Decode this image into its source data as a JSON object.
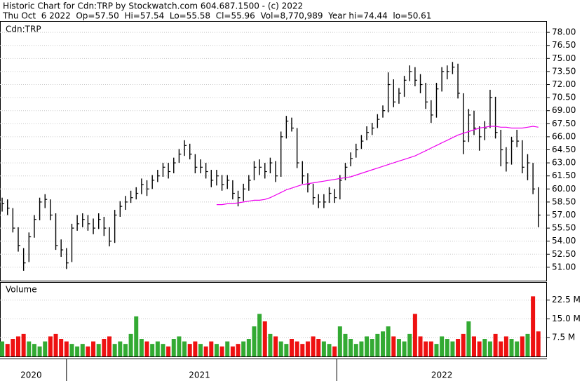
{
  "header": {
    "title": "Historic Chart for Cdn:TRP by Stockwatch.com 604.687.1500 - (c) 2022",
    "quote": "Thu Oct  6 2022  Op=57.50  Hi=57.54  Lo=55.58  Cl=55.96  Vol=8,770,989  Year hi=74.44  lo=50.61"
  },
  "chart_data": [
    {
      "type": "ohlc",
      "label": "Cdn:TRP",
      "color": "#000000",
      "grid": true,
      "xlim": [
        0,
        510
      ],
      "xticks": [
        62,
        314
      ],
      "x_labels": [
        {
          "value": 29,
          "label": "2020"
        },
        {
          "value": 186,
          "label": "2021"
        },
        {
          "value": 412,
          "label": "2022"
        }
      ],
      "x": [
        2,
        7,
        12,
        17,
        22,
        27,
        32,
        37,
        42,
        47,
        52,
        57,
        62,
        67,
        72,
        77,
        82,
        87,
        92,
        97,
        102,
        107,
        112,
        117,
        122,
        127,
        132,
        137,
        142,
        147,
        152,
        157,
        162,
        167,
        172,
        177,
        182,
        187,
        192,
        197,
        202,
        207,
        212,
        217,
        222,
        227,
        232,
        237,
        242,
        247,
        252,
        257,
        262,
        267,
        272,
        277,
        282,
        287,
        292,
        297,
        302,
        307,
        312,
        317,
        322,
        327,
        332,
        337,
        342,
        347,
        352,
        357,
        362,
        367,
        372,
        377,
        382,
        387,
        392,
        397,
        402,
        407,
        412,
        417,
        422,
        427,
        432,
        437,
        442,
        447,
        452,
        457,
        462,
        467,
        472,
        477,
        482,
        487,
        492,
        497,
        502
      ],
      "high": [
        59,
        58.8,
        57.8,
        55.6,
        53.2,
        55,
        57,
        59,
        59.4,
        58.8,
        57.2,
        54.2,
        53.2,
        56,
        57,
        57.2,
        57,
        56.6,
        57.2,
        56.8,
        55.6,
        57.6,
        58.6,
        59.2,
        59.8,
        60.2,
        61.2,
        61,
        61.6,
        62.2,
        63,
        63,
        63.6,
        64.6,
        65.6,
        65.2,
        64,
        63.4,
        63,
        62.2,
        62.2,
        61.6,
        61.6,
        61,
        59.8,
        60.6,
        61.6,
        63.2,
        63.4,
        63,
        63.6,
        63.2,
        66.6,
        68.4,
        68.2,
        67,
        63.2,
        61.8,
        60.6,
        59.4,
        59.4,
        60.2,
        60,
        61.6,
        63,
        64.2,
        65.2,
        66.2,
        67.2,
        67.6,
        68.6,
        69.6,
        73.4,
        72.6,
        71.6,
        73,
        74.2,
        74,
        73.2,
        72.2,
        70.2,
        72.2,
        74,
        74.2,
        74.6,
        74.4,
        71,
        69.2,
        69,
        67.2,
        67.8,
        71.4,
        70.6,
        66.8,
        64.8,
        66,
        66.8,
        65.6,
        64,
        63,
        60.2
      ],
      "low": [
        57.4,
        57,
        55,
        52.8,
        50.6,
        51.6,
        54.4,
        56.4,
        57.8,
        56.4,
        53,
        52.2,
        50.8,
        51.6,
        55.2,
        55.6,
        55.2,
        54.8,
        55.4,
        54.6,
        53.4,
        53.8,
        56.8,
        57.6,
        58.4,
        58.8,
        59.4,
        59.2,
        60,
        60.8,
        61.4,
        61.2,
        61.8,
        63,
        63.8,
        63.4,
        61.8,
        61.8,
        61.2,
        60.2,
        60.4,
        59.8,
        60,
        58.8,
        58,
        58.6,
        59.8,
        61,
        61.6,
        61.2,
        61.8,
        60.8,
        61.4,
        65.8,
        66.6,
        62.4,
        60.6,
        59.6,
        58.2,
        57.8,
        57.8,
        58.4,
        58.4,
        58.8,
        61,
        62.6,
        63.6,
        64.6,
        65.6,
        66.2,
        67,
        68.2,
        68.8,
        69.4,
        69.8,
        70.6,
        72.4,
        71.8,
        71,
        69.2,
        67.6,
        68.2,
        71.2,
        72.6,
        73.2,
        70.4,
        64,
        65.4,
        66.2,
        64.4,
        65.6,
        67,
        65.8,
        62.6,
        62,
        62.8,
        64.8,
        61.8,
        61,
        59.4,
        55.6
      ],
      "close": [
        58.3,
        57.8,
        55.5,
        53.5,
        51.5,
        54.5,
        56.5,
        58.5,
        58.8,
        57,
        53.5,
        53,
        51.5,
        55.5,
        56,
        56.5,
        56,
        55.5,
        56.5,
        55.5,
        54,
        57,
        58,
        58.5,
        59,
        59.5,
        60.5,
        60,
        61,
        61.5,
        62.5,
        62,
        63,
        64,
        65,
        64,
        62.5,
        62.5,
        62,
        61,
        61.5,
        60.5,
        61,
        59.5,
        59,
        60,
        61,
        62.5,
        62.5,
        62,
        63,
        61.5,
        66,
        67.8,
        67,
        63,
        61.5,
        60.5,
        59,
        58.5,
        58.5,
        59.5,
        59,
        61,
        62.5,
        63.5,
        64.5,
        65.5,
        66.5,
        67,
        68,
        69,
        72,
        70,
        71,
        72.5,
        73.5,
        72.5,
        72,
        70,
        68.5,
        71.5,
        73.5,
        73.5,
        74,
        71,
        65.5,
        68.5,
        67,
        66,
        67,
        70.5,
        66.5,
        64.5,
        63,
        65.5,
        65.5,
        62.5,
        63,
        60,
        57
      ],
      "moving_average": {
        "color": "#ee00ee",
        "values": [
          null,
          null,
          null,
          null,
          null,
          null,
          null,
          null,
          null,
          null,
          null,
          null,
          null,
          null,
          null,
          null,
          null,
          null,
          null,
          null,
          null,
          null,
          null,
          null,
          null,
          null,
          null,
          null,
          null,
          null,
          null,
          null,
          null,
          null,
          null,
          null,
          null,
          null,
          null,
          null,
          58.2,
          58.2,
          58.3,
          58.3,
          58.4,
          58.5,
          58.6,
          58.7,
          58.7,
          58.8,
          59.0,
          59.3,
          59.6,
          59.9,
          60.1,
          60.3,
          60.5,
          60.6,
          60.7,
          60.8,
          60.9,
          61.0,
          61.1,
          61.2,
          61.3,
          61.4,
          61.6,
          61.8,
          62.0,
          62.2,
          62.4,
          62.6,
          62.8,
          63.0,
          63.2,
          63.4,
          63.6,
          63.8,
          64.1,
          64.4,
          64.7,
          65.0,
          65.3,
          65.6,
          65.9,
          66.2,
          66.4,
          66.6,
          66.8,
          67.0,
          67.1,
          67.2,
          67.2,
          67.1,
          67.1,
          67.0,
          67.0,
          67.0,
          67.1,
          67.2,
          67.1
        ]
      },
      "ylim": [
        49.46,
        79.3
      ],
      "yticks": [
        {
          "value": 51,
          "label": "51.00"
        },
        {
          "value": 52.5,
          "label": "52.50"
        },
        {
          "value": 54,
          "label": "54.00"
        },
        {
          "value": 55.5,
          "label": "55.50"
        },
        {
          "value": 57,
          "label": "57.00"
        },
        {
          "value": 58.5,
          "label": "58.50"
        },
        {
          "value": 60,
          "label": "60.00"
        },
        {
          "value": 61.5,
          "label": "61.50"
        },
        {
          "value": 63,
          "label": "63.00"
        },
        {
          "value": 64.5,
          "label": "64.50"
        },
        {
          "value": 66,
          "label": "66.00"
        },
        {
          "value": 67.5,
          "label": "67.50"
        },
        {
          "value": 69,
          "label": "69.00"
        },
        {
          "value": 70.5,
          "label": "70.50"
        },
        {
          "value": 72,
          "label": "72.00"
        },
        {
          "value": 73.5,
          "label": "73.50"
        },
        {
          "value": 75,
          "label": "75.00"
        },
        {
          "value": 76.5,
          "label": "76.50"
        },
        {
          "value": 78,
          "label": "78.00"
        }
      ]
    },
    {
      "type": "bar",
      "label": "Volume",
      "grid": true,
      "up_color": "#33aa33",
      "down_color": "#ee1111",
      "values": [
        6,
        5,
        7,
        8,
        9,
        6,
        5,
        4,
        6,
        8,
        9,
        7,
        6,
        5,
        4,
        5,
        4,
        6,
        5,
        7,
        8,
        5,
        6,
        5,
        9,
        16,
        7,
        6,
        5,
        6,
        5,
        4,
        7,
        8,
        6,
        5,
        6,
        5,
        4,
        6,
        5,
        4,
        6,
        4,
        5,
        6,
        7,
        12,
        17,
        14,
        9,
        8,
        6,
        5,
        7,
        6,
        5,
        6,
        8,
        7,
        6,
        5,
        4,
        12,
        9,
        7,
        5,
        6,
        8,
        7,
        9,
        10,
        12,
        8,
        7,
        6,
        9,
        17,
        8,
        6,
        6,
        5,
        8,
        7,
        6,
        7,
        9,
        14,
        8,
        6,
        7,
        6,
        9,
        6,
        8,
        7,
        6,
        8,
        9,
        24,
        10
      ],
      "ylim": [
        0,
        29.7
      ],
      "yticks": [
        {
          "value": 7.5,
          "label": "7.5 M"
        },
        {
          "value": 15,
          "label": "15.0 M"
        },
        {
          "value": 22.5,
          "label": "22.5 M"
        }
      ]
    }
  ]
}
